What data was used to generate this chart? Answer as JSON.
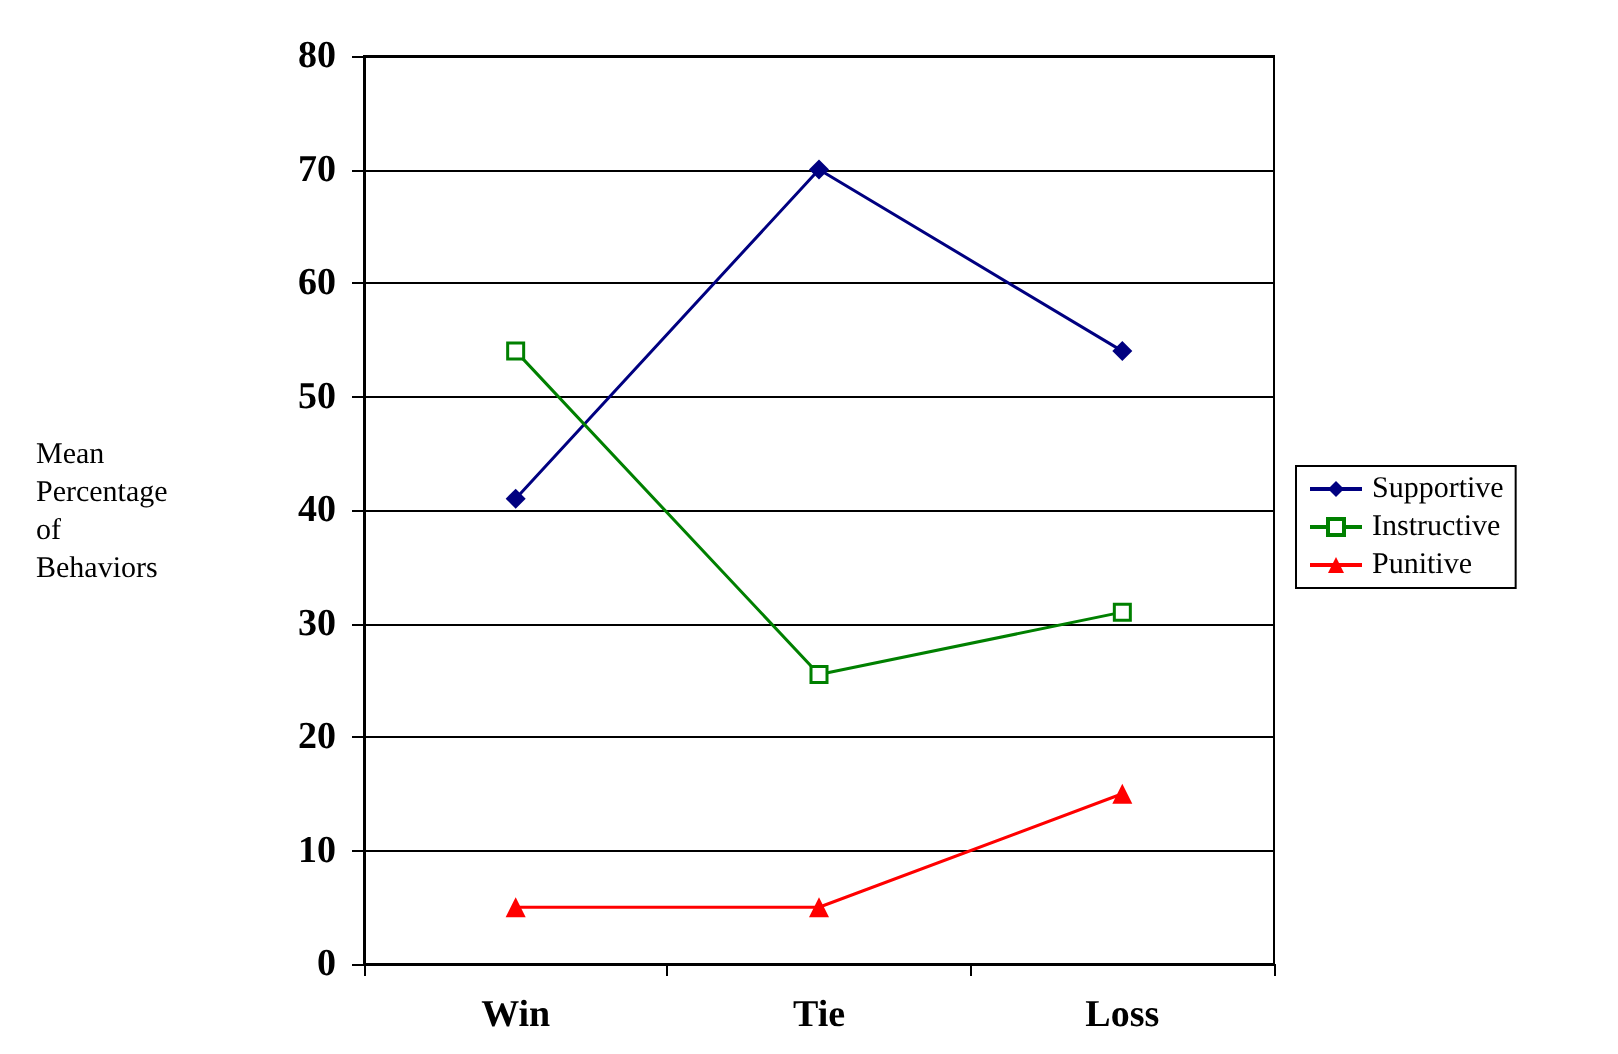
{
  "chart_data": {
    "type": "line",
    "ylabel": "Mean Percentage of Behaviors",
    "categories": [
      "Win",
      "Tie",
      "Loss"
    ],
    "series": [
      {
        "name": "Supportive",
        "color": "#000080",
        "marker": "diamond",
        "values": [
          41,
          70,
          54
        ]
      },
      {
        "name": "Instructive",
        "color": "#008000",
        "marker": "square",
        "values": [
          54,
          25.5,
          31
        ]
      },
      {
        "name": "Punitive",
        "color": "#ff0000",
        "marker": "triangle",
        "values": [
          5,
          5,
          15
        ]
      }
    ],
    "ylim": [
      0,
      80
    ],
    "yticks": [
      0,
      10,
      20,
      30,
      40,
      50,
      60,
      70,
      80
    ],
    "grid": "y",
    "legend": "right"
  }
}
